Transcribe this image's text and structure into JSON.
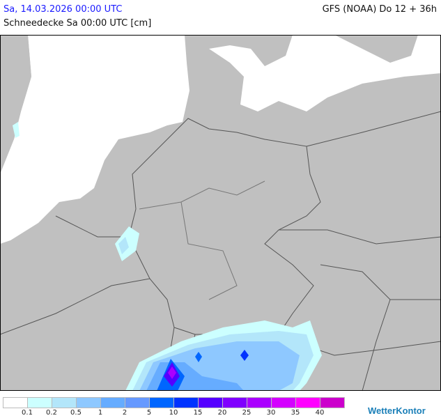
{
  "header": {
    "date": "Sa, 14.03.2026 00:00 UTC",
    "model": "GFS (NOAA) Do 12 + 36h",
    "parameter": "Schneedecke Sa 00:00 UTC [cm]"
  },
  "map": {
    "land_color": "#c0c0c0",
    "sea_color": "#ffffff",
    "border_color": "#555555"
  },
  "legend": {
    "colors": [
      "#ffffff",
      "#ccffff",
      "#b3e6fa",
      "#8ec8ff",
      "#66acff",
      "#6699ff",
      "#0066ff",
      "#0033ff",
      "#5500ff",
      "#8000ff",
      "#aa00ff",
      "#d400ff",
      "#ff00ff",
      "#cc00cc"
    ],
    "labels": [
      "0.1",
      "0.2",
      "0.5",
      "1",
      "2",
      "5",
      "10",
      "15",
      "20",
      "25",
      "30",
      "35",
      "40"
    ]
  },
  "logo": "WetterKontor"
}
